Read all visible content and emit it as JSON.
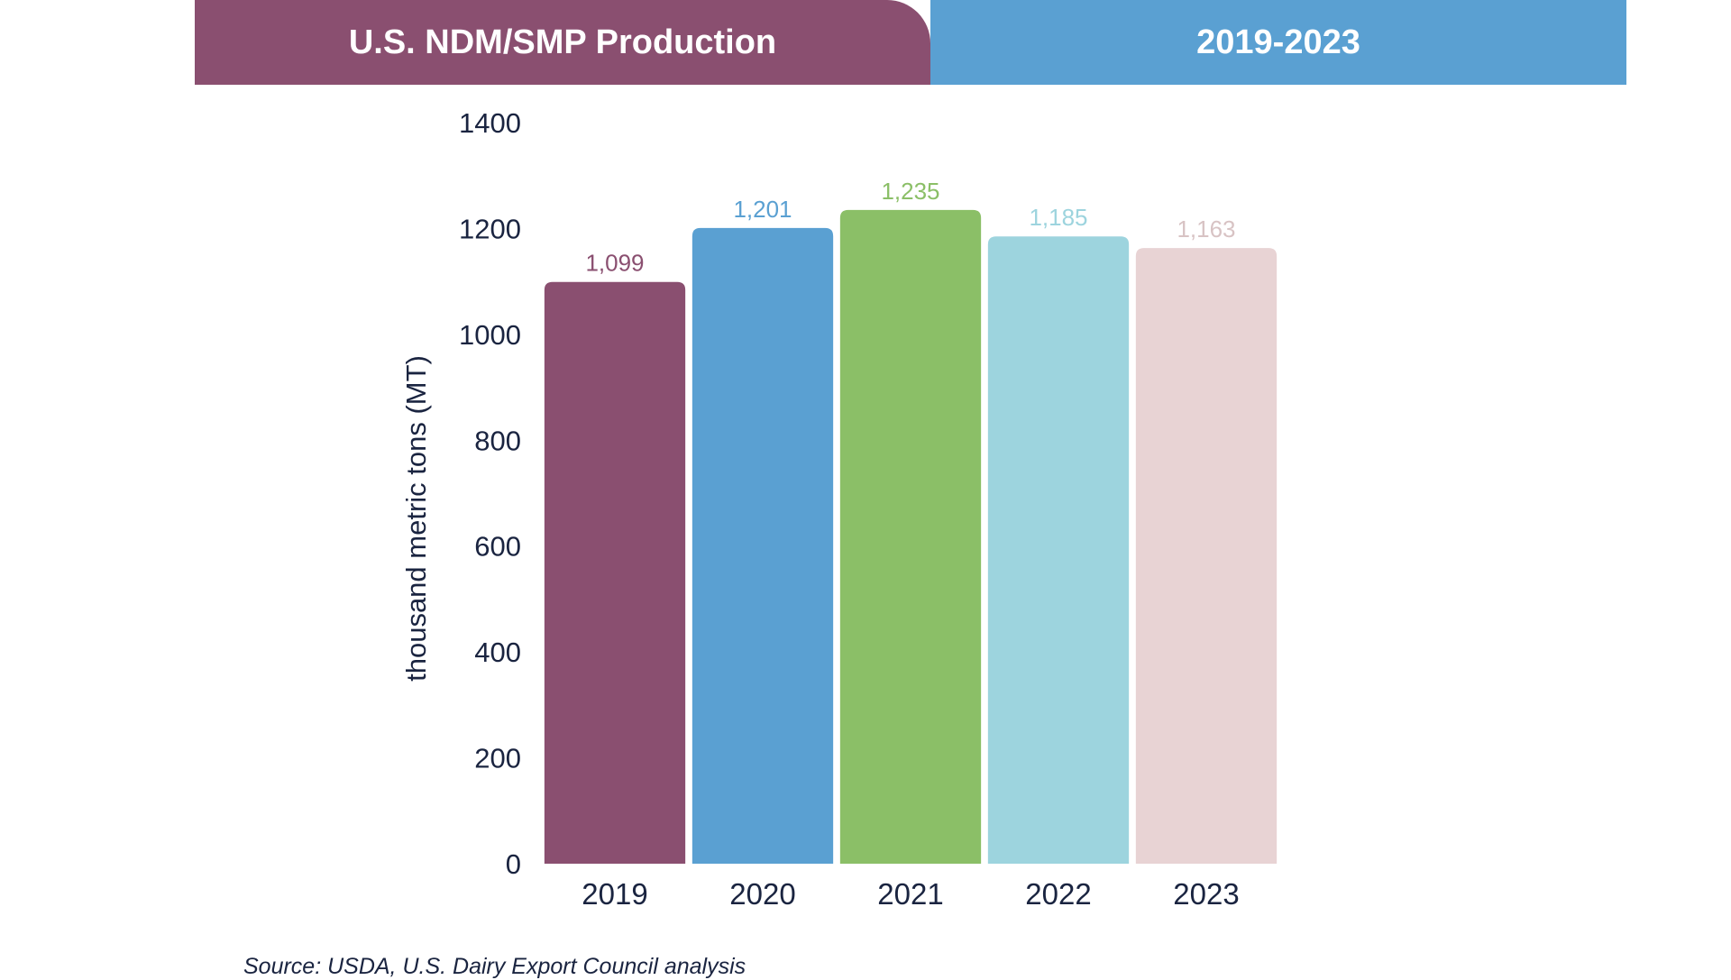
{
  "header": {
    "title": "U.S. NDM/SMP Production",
    "period": "2019-2023",
    "title_color": "#8a4f70",
    "period_color": "#5aa0d2"
  },
  "chart_data": {
    "type": "bar",
    "categories": [
      "2019",
      "2020",
      "2021",
      "2022",
      "2023"
    ],
    "values": [
      1099,
      1201,
      1235,
      1185,
      1163
    ],
    "value_labels": [
      "1,099",
      "1,201",
      "1,235",
      "1,185",
      "1,163"
    ],
    "colors": [
      "#8a4f70",
      "#5aa0d2",
      "#8bbf67",
      "#9dd4de",
      "#e8d3d4"
    ],
    "label_colors": [
      "#8a4f70",
      "#5aa0d2",
      "#8bbf67",
      "#9dd4de",
      "#d8c3c4"
    ],
    "ylabel": "thousand metric tons (MT)",
    "ylim": [
      0,
      1400
    ],
    "yticks": [
      0,
      200,
      400,
      600,
      800,
      1000,
      1200,
      1400
    ],
    "grid": false,
    "text_color": "#1a2440"
  },
  "footer": {
    "source": "Source: USDA, U.S. Dairy Export Council analysis"
  }
}
